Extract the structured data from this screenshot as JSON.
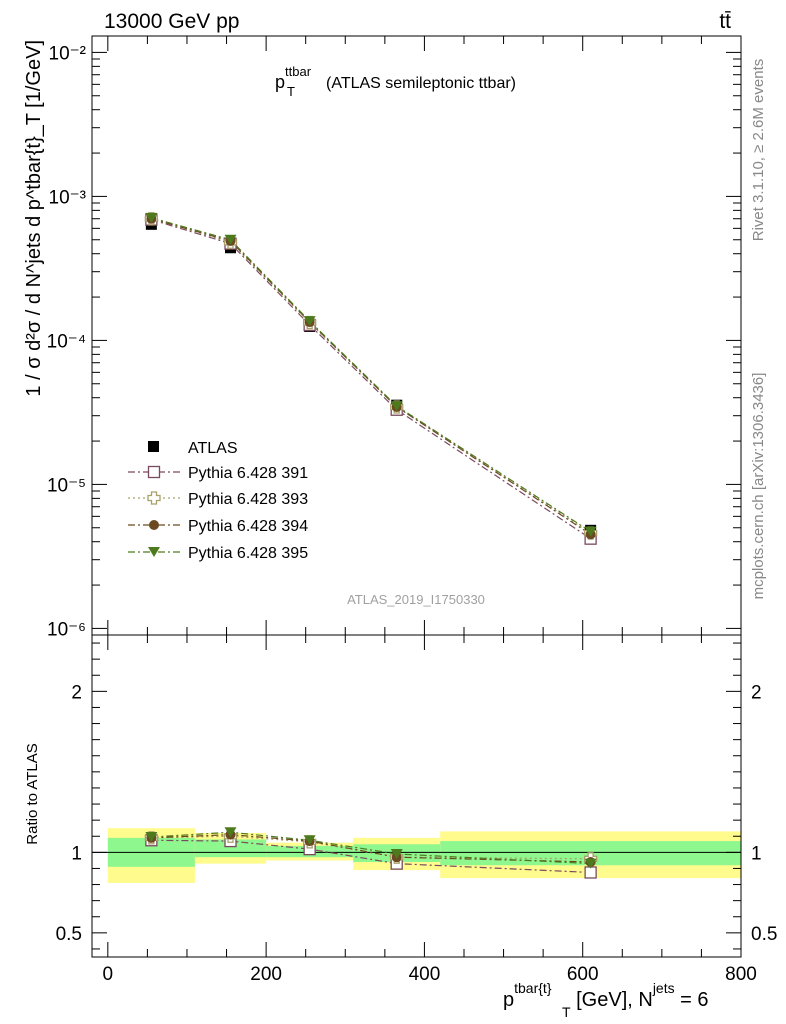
{
  "header": {
    "left": "13000 GeV pp",
    "right": "tt̄"
  },
  "side_labels": {
    "rivet": "Rivet 3.1.10, ≥ 2.6M events",
    "mcplots": "mcplots.cern.ch [arXiv:1306.3436]"
  },
  "analysis_tag": "ATLAS_2019_I1750330",
  "colors": {
    "atlas": "#000000",
    "p391": "#7a4a5e",
    "p393": "#a9a06a",
    "p394": "#6b4a22",
    "p395": "#4e7a1e",
    "band_inner": "#8ef78e",
    "band_outer": "#fffb8c"
  },
  "chart_data": [
    {
      "type": "scatter",
      "panel": "main",
      "title_main": "p",
      "title_sup": "ttbar",
      "title_sub": "T",
      "title_rest": "(ATLAS semileptonic ttbar)",
      "ylabel": "1 / σ d²σ / d N^jets d p^tbar{t}_T [1/GeV]",
      "yscale": "log",
      "ylim": [
        9e-07,
        0.013
      ],
      "xlim": [
        -20,
        800
      ],
      "y_ticks": [
        "10⁻²",
        "10⁻³",
        "10⁻⁴",
        "10⁻⁵",
        "10⁻⁶"
      ],
      "x": [
        55,
        155,
        255,
        365,
        610
      ],
      "series": [
        {
          "name": "ATLAS",
          "marker": "filled-square",
          "values": [
            0.00064,
            0.00044,
            0.000125,
            3.55e-05,
            4.8e-06
          ]
        },
        {
          "name": "Pythia 6.428 391",
          "marker": "open-square",
          "line": "dash-dot",
          "values": [
            0.00069,
            0.00047,
            0.000128,
            3.3e-05,
            4.2e-06
          ]
        },
        {
          "name": "Pythia 6.428 393",
          "marker": "open-cross",
          "line": "dotted",
          "values": [
            0.0007,
            0.00048,
            0.000133,
            3.45e-05,
            4.6e-06
          ]
        },
        {
          "name": "Pythia 6.428 394",
          "marker": "filled-circle",
          "line": "dash-dot",
          "values": [
            0.0007,
            0.00049,
            0.000134,
            3.45e-05,
            4.5e-06
          ]
        },
        {
          "name": "Pythia 6.428 395",
          "marker": "filled-triangle",
          "line": "dash-dot",
          "values": [
            0.00071,
            0.0005,
            0.000136,
            3.5e-05,
            4.7e-06
          ]
        }
      ]
    },
    {
      "type": "scatter",
      "panel": "ratio",
      "ylabel": "Ratio to ATLAS",
      "xlabel_main": "p",
      "xlabel_sup": "tbar{t}",
      "xlabel_sub": "T",
      "xlabel_rest": " [GeV], N",
      "xlabel_sup2": "jets",
      "xlabel_end": " = 6",
      "ylim": [
        0.35,
        2.35
      ],
      "xlim": [
        -20,
        800
      ],
      "y_ticks": [
        {
          "v": 0.5,
          "label": "0.5"
        },
        {
          "v": 1,
          "label": "1"
        },
        {
          "v": 2,
          "label": "2"
        }
      ],
      "x_ticks": [
        {
          "v": 0,
          "label": "0"
        },
        {
          "v": 200,
          "label": "200"
        },
        {
          "v": 400,
          "label": "400"
        },
        {
          "v": 600,
          "label": "600"
        },
        {
          "v": 800,
          "label": "800"
        }
      ],
      "bins": [
        {
          "lo": 0,
          "hi": 110,
          "inner": [
            0.91,
            1.09
          ],
          "outer": [
            0.81,
            1.15
          ]
        },
        {
          "lo": 110,
          "hi": 200,
          "inner": [
            0.97,
            1.08
          ],
          "outer": [
            0.93,
            1.12
          ]
        },
        {
          "lo": 200,
          "hi": 310,
          "inner": [
            0.97,
            1.04
          ],
          "outer": [
            0.95,
            1.06
          ]
        },
        {
          "lo": 310,
          "hi": 420,
          "inner": [
            0.94,
            1.05
          ],
          "outer": [
            0.89,
            1.09
          ]
        },
        {
          "lo": 420,
          "hi": 800,
          "inner": [
            0.92,
            1.07
          ],
          "outer": [
            0.84,
            1.13
          ]
        }
      ],
      "x": [
        55,
        155,
        255,
        365,
        610
      ],
      "series": [
        {
          "name": "Pythia 6.428 391",
          "values": [
            1.075,
            1.07,
            1.02,
            0.93,
            0.875
          ]
        },
        {
          "name": "Pythia 6.428 393",
          "values": [
            1.09,
            1.1,
            1.065,
            0.97,
            0.96
          ]
        },
        {
          "name": "Pythia 6.428 394",
          "values": [
            1.09,
            1.11,
            1.07,
            0.97,
            0.94
          ]
        },
        {
          "name": "Pythia 6.428 395",
          "values": [
            1.095,
            1.125,
            1.075,
            0.99,
            0.93
          ]
        }
      ]
    }
  ]
}
